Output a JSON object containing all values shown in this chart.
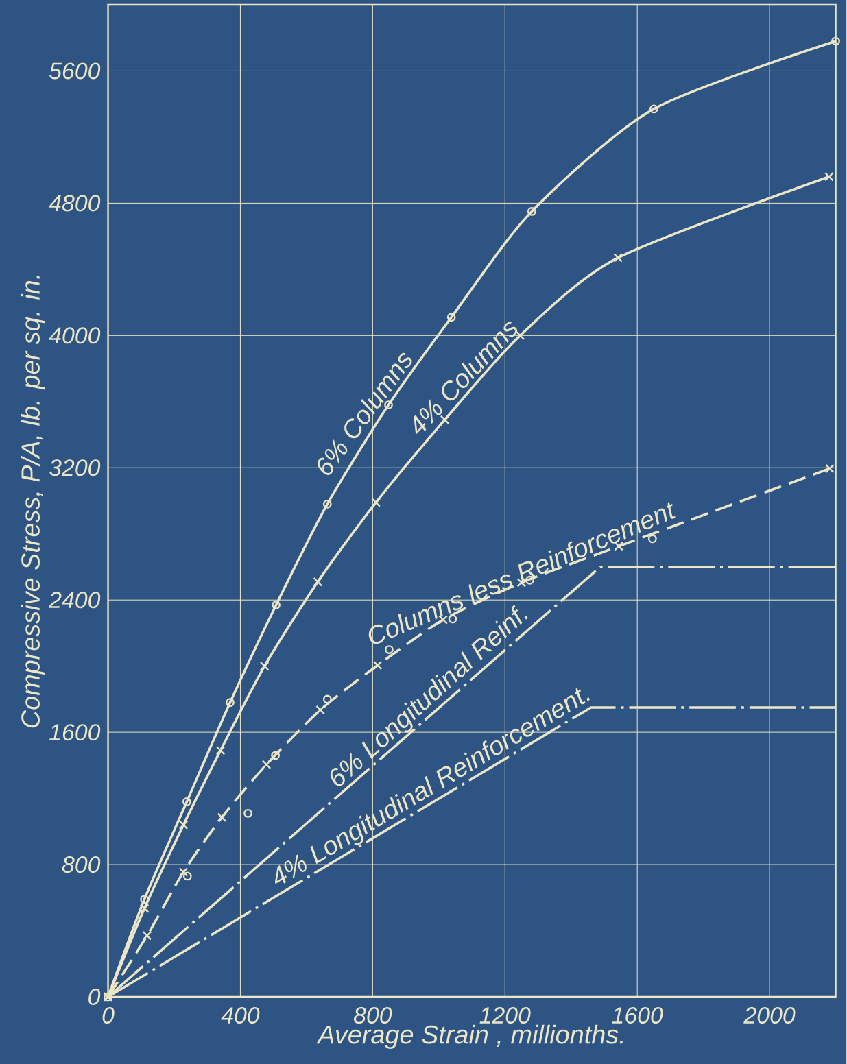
{
  "chart_data": {
    "type": "line",
    "xlabel": "Average Strain , millionths.",
    "ylabel": "Compressive Stress, P/A, lb. per sq. in.",
    "xlim": [
      0,
      2200
    ],
    "ylim": [
      0,
      6000
    ],
    "xticks": [
      0,
      400,
      800,
      1200,
      1600,
      2000
    ],
    "yticks": [
      0,
      800,
      1600,
      2400,
      3200,
      4000,
      4800,
      5600
    ],
    "grid": true,
    "series": [
      {
        "name": "6% Columns",
        "color": "#ece6c8",
        "marker": "circle",
        "line_style": "solid",
        "x": [
          0,
          110,
          238,
          369,
          508,
          663,
          848,
          1038,
          1281,
          1650,
          2200
        ],
        "values": [
          0,
          590,
          1180,
          1780,
          2370,
          2980,
          3580,
          4110,
          4750,
          5370,
          5780
        ]
      },
      {
        "name": "4% Columns",
        "color": "#ece6c8",
        "marker": "cross",
        "line_style": "solid",
        "x": [
          0,
          110,
          228,
          340,
          473,
          634,
          810,
          1018,
          1246,
          1542,
          2180
        ],
        "values": [
          0,
          535,
          1040,
          1490,
          2000,
          2510,
          2990,
          3490,
          4000,
          4470,
          4960
        ]
      },
      {
        "name": "Columns less Reinforcement",
        "color": "#ece6c8",
        "marker": "cross",
        "line_style": "dashed",
        "x": [
          0,
          118,
          228,
          344,
          479,
          642,
          815,
          1013,
          1250,
          1544,
          2182
        ],
        "values": [
          0,
          370,
          755,
          1085,
          1405,
          1735,
          2005,
          2280,
          2505,
          2725,
          3195
        ]
      },
      {
        "type": "scatter",
        "color": "#ece6c8",
        "marker": "circle",
        "x": [
          240,
          423,
          506,
          663,
          850,
          1042,
          1275,
          1646
        ],
        "values": [
          730,
          1110,
          1460,
          1800,
          2100,
          2285,
          2520,
          2770
        ]
      },
      {
        "name": "6% Longitudinal Reinf.",
        "color": "#ece6c8",
        "marker": "none",
        "line_style": "dashdot",
        "x": [
          0,
          1488,
          2200
        ],
        "values": [
          0,
          2600,
          2600
        ]
      },
      {
        "name": "4% Longitudinal Reinforcement.",
        "color": "#ece6c8",
        "marker": "none",
        "line_style": "dashdot",
        "x": [
          0,
          1460,
          2200
        ],
        "values": [
          0,
          1750,
          1750
        ]
      }
    ]
  }
}
